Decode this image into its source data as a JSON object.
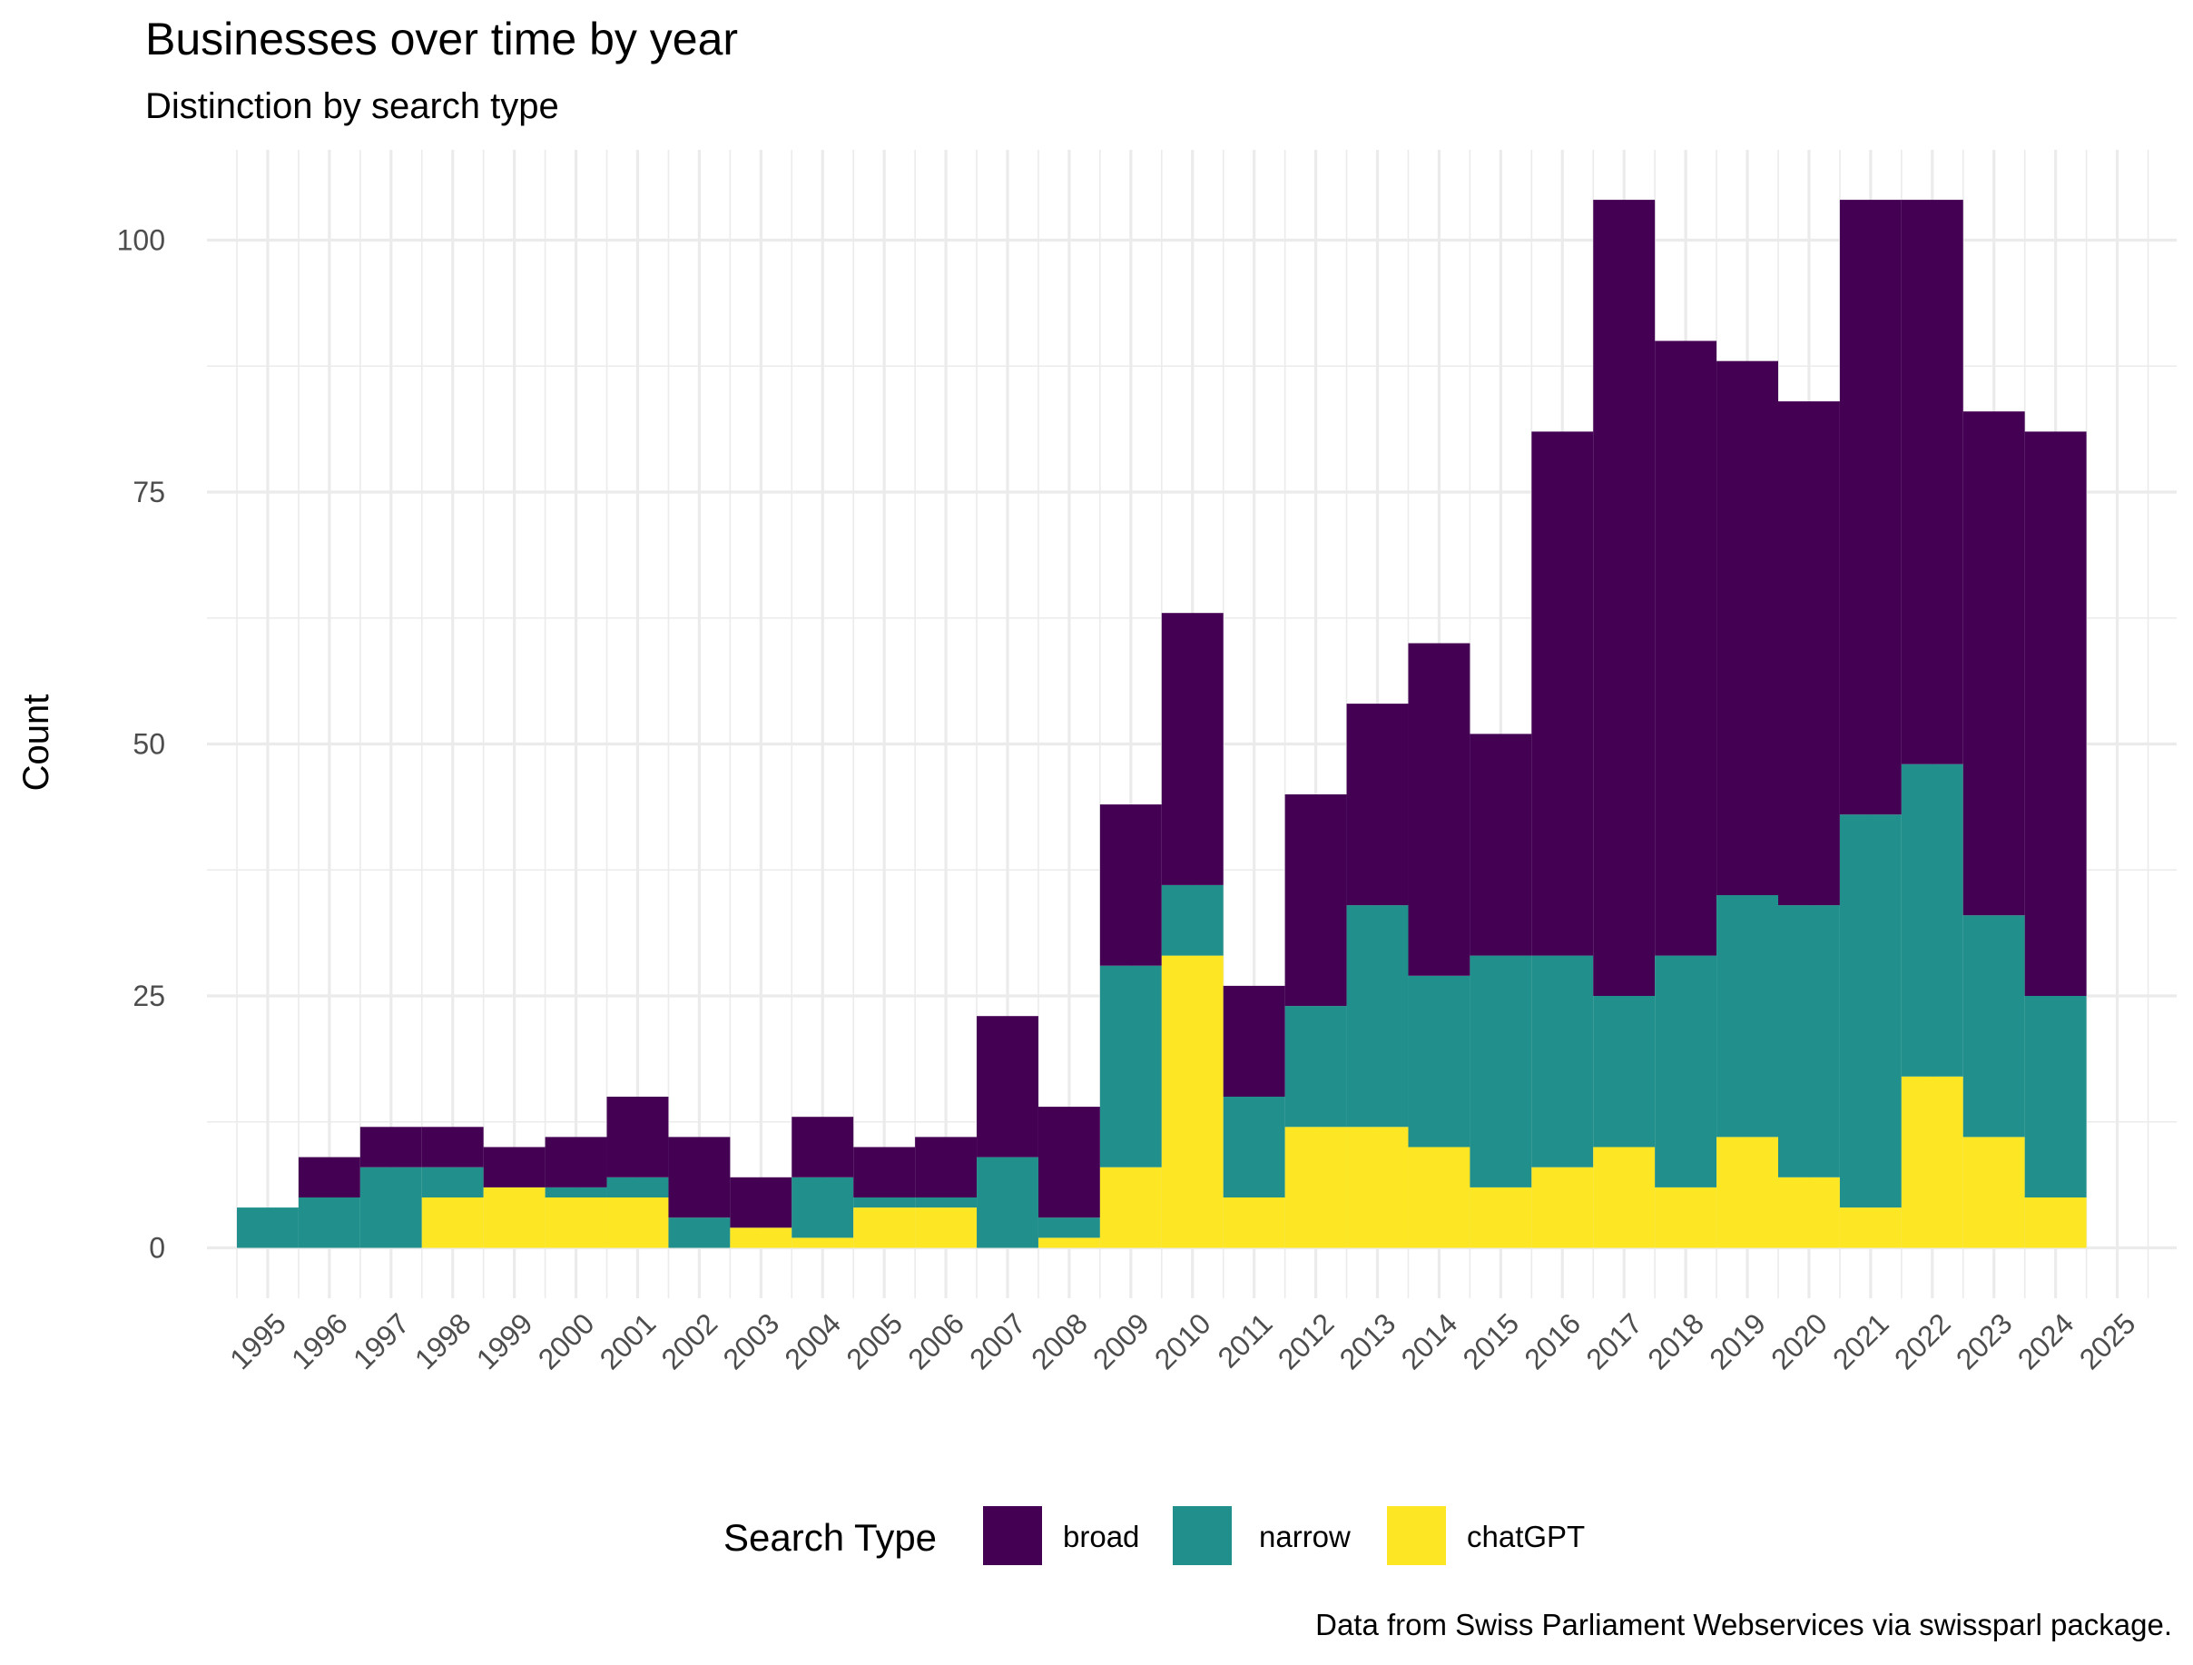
{
  "chart_data": {
    "type": "bar",
    "stacked": true,
    "title": "Businesses over time by year",
    "subtitle": "Distinction by search type",
    "xlabel": "",
    "ylabel": "Count",
    "caption": "Data from Swiss Parliament Webservices via swissparl package.",
    "legend_title": "Search Type",
    "legend_position": "bottom",
    "grid": true,
    "ylim": [
      -6,
      108
    ],
    "yticks": [
      0,
      25,
      50,
      75,
      100
    ],
    "categories": [
      "1995",
      "1996",
      "1997",
      "1998",
      "1999",
      "2000",
      "2001",
      "2002",
      "2003",
      "2004",
      "2005",
      "2006",
      "2007",
      "2008",
      "2009",
      "2010",
      "2011",
      "2012",
      "2013",
      "2014",
      "2015",
      "2016",
      "2017",
      "2018",
      "2019",
      "2020",
      "2021",
      "2022",
      "2023",
      "2024",
      "2025"
    ],
    "series": [
      {
        "name": "chatGPT",
        "color": "#FDE725",
        "values": [
          0,
          0,
          0,
          5,
          6,
          5,
          5,
          0,
          2,
          1,
          4,
          4,
          0,
          1,
          8,
          29,
          5,
          12,
          12,
          10,
          6,
          8,
          10,
          6,
          11,
          7,
          4,
          17,
          11,
          5,
          0
        ]
      },
      {
        "name": "narrow",
        "color": "#21908C",
        "values": [
          4,
          5,
          8,
          3,
          0,
          1,
          2,
          3,
          0,
          6,
          1,
          1,
          9,
          2,
          20,
          7,
          10,
          12,
          22,
          17,
          23,
          21,
          15,
          23,
          24,
          27,
          39,
          31,
          22,
          20,
          0
        ]
      },
      {
        "name": "broad",
        "color": "#440154",
        "values": [
          0,
          4,
          4,
          4,
          4,
          5,
          8,
          8,
          5,
          6,
          5,
          6,
          14,
          11,
          16,
          27,
          11,
          21,
          20,
          33,
          22,
          52,
          79,
          61,
          53,
          50,
          61,
          56,
          50,
          56,
          0
        ]
      }
    ],
    "legend_order": [
      "broad",
      "narrow",
      "chatGPT"
    ]
  }
}
